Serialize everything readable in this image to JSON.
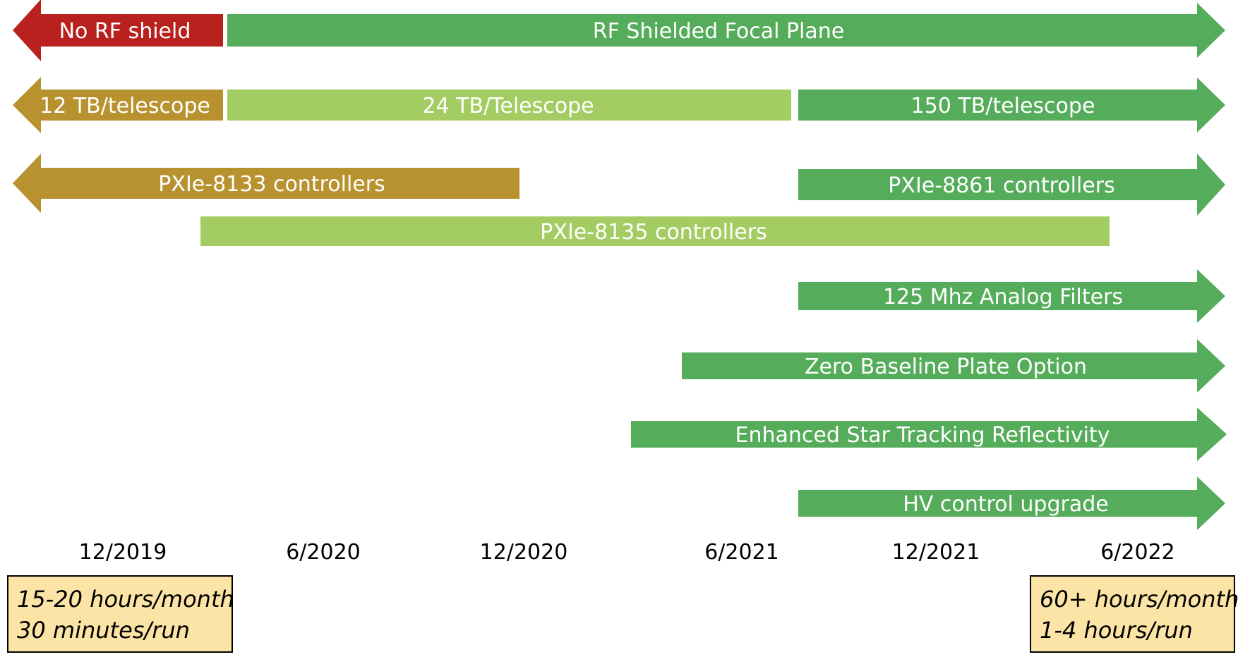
{
  "colors": {
    "red": "#b8211d",
    "gold": "#b8922e",
    "green": "#55ac5a",
    "light_green": "#a3cd62"
  },
  "bars": [
    {
      "id": "no-rf-shield",
      "label": "No RF shield",
      "color": "red"
    },
    {
      "id": "rf-shielded-focal-plane",
      "label": "RF Shielded Focal Plane",
      "color": "green"
    },
    {
      "id": "12tb-telescope",
      "label": "12 TB/telescope",
      "color": "gold"
    },
    {
      "id": "24tb-telescope",
      "label": "24 TB/Telescope",
      "color": "light_green"
    },
    {
      "id": "150tb-telescope",
      "label": "150 TB/telescope",
      "color": "green"
    },
    {
      "id": "pxie-8133",
      "label": "PXIe-8133 controllers",
      "color": "gold"
    },
    {
      "id": "pxie-8861",
      "label": "PXIe-8861 controllers",
      "color": "green"
    },
    {
      "id": "pxie-8135",
      "label": "PXIe-8135 controllers",
      "color": "light_green"
    },
    {
      "id": "analog-filters",
      "label": "125 Mhz Analog  Filters",
      "color": "green"
    },
    {
      "id": "zero-baseline",
      "label": "Zero Baseline Plate Option",
      "color": "green"
    },
    {
      "id": "star-tracking",
      "label": "Enhanced Star Tracking Reflectivity",
      "color": "green"
    },
    {
      "id": "hv-control",
      "label": "HV control upgrade",
      "color": "green"
    }
  ],
  "timeline_labels": [
    "12/2019",
    "6/2020",
    "12/2020",
    "6/2021",
    "12/2021",
    "6/2022"
  ],
  "notes": {
    "left": [
      "15-20 hours/month",
      "30 minutes/run"
    ],
    "right": [
      "60+ hours/month",
      "1-4 hours/run"
    ]
  }
}
